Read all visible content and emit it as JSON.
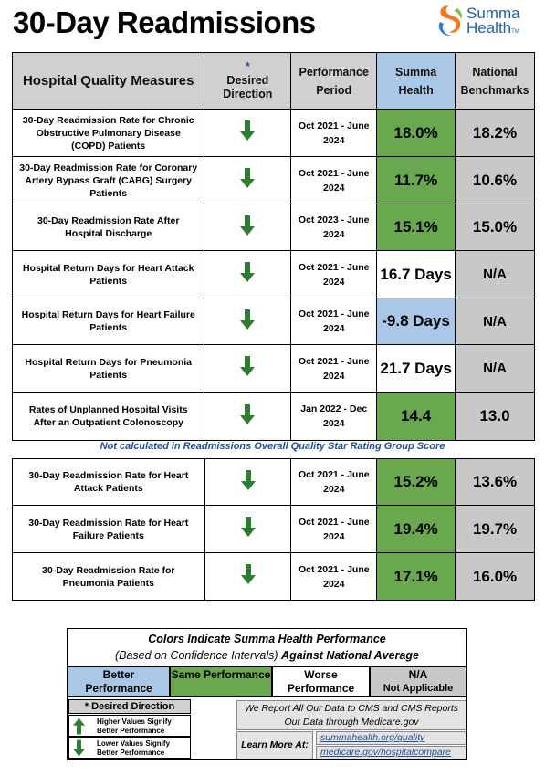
{
  "title": "30-Day Readmissions",
  "logo": {
    "line1": "Summa",
    "line2": "Health",
    "tm": "TM"
  },
  "headers": {
    "measure": "Hospital Quality Measures",
    "direction_star": "*",
    "direction": "Desired Direction",
    "period": "Performance Period",
    "summa": "Summa Health",
    "national": "National Benchmarks"
  },
  "group1": [
    {
      "measure": "30-Day Readmission Rate for Chronic Obstructive Pulmonary Disease (COPD) Patients",
      "period": "Oct 2021 - June 2024",
      "summa": "18.0%",
      "summa_color": "green",
      "national": "18.2%"
    },
    {
      "measure": "30-Day Readmission Rate for Coronary Artery Bypass Graft (CABG) Surgery Patients",
      "period": "Oct 2021 - June 2024",
      "summa": "11.7%",
      "summa_color": "green",
      "national": "10.6%"
    },
    {
      "measure": "30-Day Readmission Rate After Hospital Discharge",
      "period": "Oct 2023 - June 2024",
      "summa": "15.1%",
      "summa_color": "green",
      "national": "15.0%"
    },
    {
      "measure": "Hospital Return Days for Heart Attack Patients",
      "period": "Oct 2021 - June 2024",
      "summa": "16.7 Days",
      "summa_color": "white",
      "national": "N/A"
    },
    {
      "measure": "Hospital Return Days for Heart Failure Patients",
      "period": "Oct 2021 - June 2024",
      "summa": "-9.8  Days",
      "summa_color": "blue",
      "national": "N/A"
    },
    {
      "measure": "Hospital Return Days for Pneumonia Patients",
      "period": "Oct 2021 - June 2024",
      "summa": "21.7 Days",
      "summa_color": "white",
      "national": "N/A"
    },
    {
      "measure": "Rates of Unplanned Hospital Visits After an Outpatient Colonoscopy",
      "period": "Jan 2022 - Dec 2024",
      "summa": "14.4",
      "summa_color": "green",
      "national": "13.0"
    }
  ],
  "note": "Not calculated in Readmissions Overall Quality Star Rating Group Score",
  "group2": [
    {
      "measure": "30-Day Readmission Rate for Heart Attack Patients",
      "period": "Oct 2021 - June 2024",
      "summa": "15.2%",
      "summa_color": "green",
      "national": "13.6%"
    },
    {
      "measure": "30-Day Readmission Rate for Heart Failure Patients",
      "period": "Oct 2021 - June 2024",
      "summa": "19.4%",
      "summa_color": "green",
      "national": "19.7%"
    },
    {
      "measure": "30-Day Readmission Rate for Pneumonia Patients",
      "period": "Oct 2021 - June 2024",
      "summa": "17.1%",
      "summa_color": "green",
      "national": "16.0%"
    }
  ],
  "legend": {
    "title": "Colors Indicate Summa Health Performance",
    "sub_italic": "(Based on Confidence Intervals)",
    "sub_bold": "Against National Average",
    "better": "Better Performance",
    "same": "Same Performance",
    "worse": "Worse Performance",
    "na": "N/A",
    "na_sub": "Not Applicable",
    "desired_head": "* Desired Direction",
    "higher": "Higher Values Signify Better Performance",
    "lower": "Lower Values Signify Better Performance",
    "report": "We Report All Our Data to CMS and CMS Reports Our Data through Medicare.gov",
    "learn": "Learn More At:",
    "link1": "summahealth.org/quality",
    "link2": "medicare.gov/hospitalcompare"
  },
  "colors": {
    "green": "#6aa84f",
    "blue": "#a9c8e8",
    "gray": "#c8c8c8",
    "header_gray": "#d0d0d0",
    "arrow": "#2e7d32",
    "note_blue": "#1f4e9c"
  }
}
